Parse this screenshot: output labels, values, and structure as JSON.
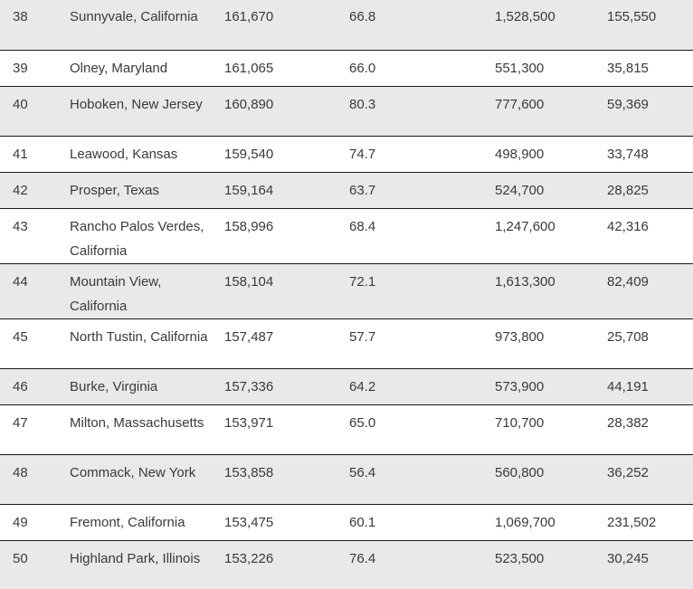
{
  "rows": [
    {
      "rank": "38",
      "city": "Sunnyvale, California",
      "income": "161,670",
      "pct": "66.8",
      "home_value": "1,528,500",
      "population": "155,550"
    },
    {
      "rank": "39",
      "city": "Olney, Maryland",
      "income": "161,065",
      "pct": "66.0",
      "home_value": "551,300",
      "population": "35,815"
    },
    {
      "rank": "40",
      "city": "Hoboken, New Jersey",
      "income": "160,890",
      "pct": "80.3",
      "home_value": "777,600",
      "population": "59,369"
    },
    {
      "rank": "41",
      "city": "Leawood, Kansas",
      "income": "159,540",
      "pct": "74.7",
      "home_value": "498,900",
      "population": "33,748"
    },
    {
      "rank": "42",
      "city": "Prosper, Texas",
      "income": "159,164",
      "pct": "63.7",
      "home_value": "524,700",
      "population": "28,825"
    },
    {
      "rank": "43",
      "city": "Rancho Palos Verdes, California",
      "income": "158,996",
      "pct": "68.4",
      "home_value": "1,247,600",
      "population": "42,316"
    },
    {
      "rank": "44",
      "city": "Mountain View, California",
      "income": "158,104",
      "pct": "72.1",
      "home_value": "1,613,300",
      "population": "82,409"
    },
    {
      "rank": "45",
      "city": "North Tustin, California",
      "income": "157,487",
      "pct": "57.7",
      "home_value": "973,800",
      "population": "25,708"
    },
    {
      "rank": "46",
      "city": "Burke, Virginia",
      "income": "157,336",
      "pct": "64.2",
      "home_value": "573,900",
      "population": "44,191"
    },
    {
      "rank": "47",
      "city": "Milton, Massachusetts",
      "income": "153,971",
      "pct": "65.0",
      "home_value": "710,700",
      "population": "28,382"
    },
    {
      "rank": "48",
      "city": "Commack, New York",
      "income": "153,858",
      "pct": "56.4",
      "home_value": "560,800",
      "population": "36,252"
    },
    {
      "rank": "49",
      "city": "Fremont, California",
      "income": "153,475",
      "pct": "60.1",
      "home_value": "1,069,700",
      "population": "231,502"
    },
    {
      "rank": "50",
      "city": "Highland Park, Illinois",
      "income": "153,226",
      "pct": "76.4",
      "home_value": "523,500",
      "population": "30,245"
    }
  ]
}
